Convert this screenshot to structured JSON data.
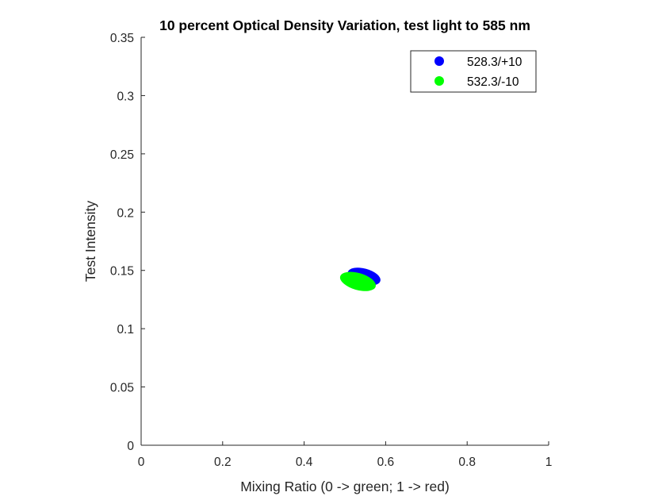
{
  "chart_data": {
    "type": "scatter",
    "title": "10 percent Optical Density Variation, test light to 585 nm",
    "xlabel": "Mixing Ratio (0 -> green; 1 -> red)",
    "ylabel": "Test Intensity",
    "xlim": [
      0,
      1
    ],
    "ylim": [
      0,
      0.35
    ],
    "xticks": [
      0,
      0.2,
      0.4,
      0.6,
      0.8,
      1
    ],
    "xtick_labels": [
      "0",
      "0.2",
      "0.4",
      "0.6",
      "0.8",
      "1"
    ],
    "yticks": [
      0,
      0.05,
      0.1,
      0.15,
      0.2,
      0.25,
      0.3,
      0.35
    ],
    "ytick_labels": [
      "0",
      "0.05",
      "0.1",
      "0.15",
      "0.2",
      "0.25",
      "0.3",
      "0.35"
    ],
    "grid": false,
    "legend_position": "top-right",
    "series": [
      {
        "name": "528.3/+10",
        "color": "#0000ff",
        "shape": "filled-ellipse",
        "center": [
          0.547,
          0.1447
        ],
        "semi_axes": [
          0.0415,
          0.0069
        ],
        "rotation_deg": 15
      },
      {
        "name": "532.3/-10",
        "color": "#00ff00",
        "shape": "filled-ellipse",
        "center": [
          0.532,
          0.1405
        ],
        "semi_axes": [
          0.0452,
          0.0073
        ],
        "rotation_deg": 16
      }
    ]
  }
}
